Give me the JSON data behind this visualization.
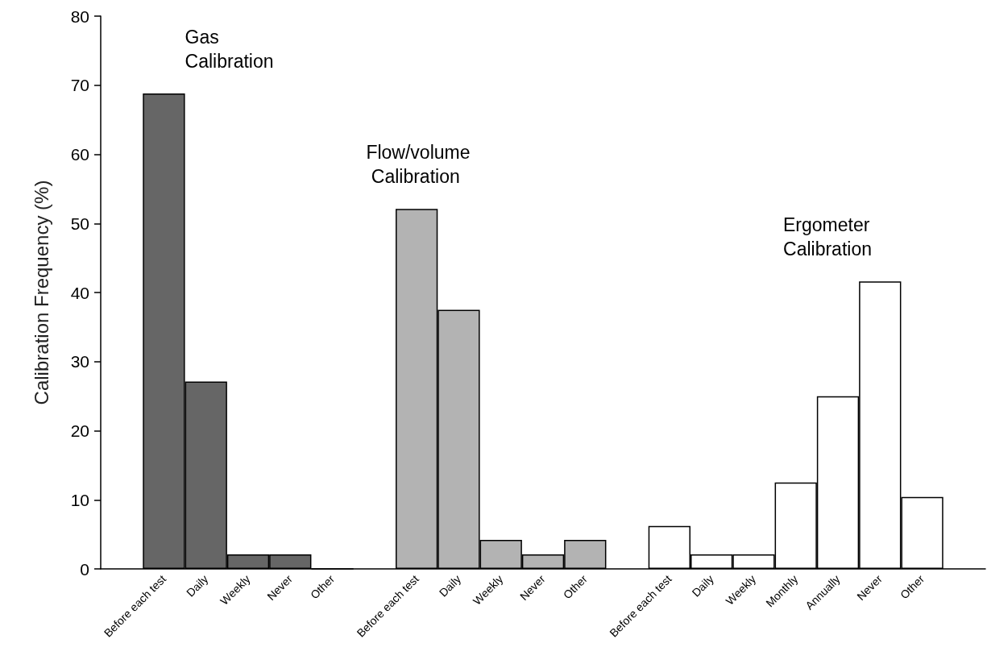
{
  "chart_data": {
    "type": "bar",
    "ylabel": "Calibration Frequency (%)",
    "categories": [
      null,
      "Before each test",
      "Daily",
      "Weekly",
      "Never",
      "Other",
      null,
      "Before each test",
      "Daily",
      "Weekly",
      "Never",
      "Other",
      null,
      "Before each test",
      "Daily",
      "Weekly",
      "Monthly",
      "Annually",
      "Never",
      "Other",
      null
    ],
    "series": [
      {
        "name": "Gas Calibration",
        "color": "#666666",
        "values": [
          null,
          68.8,
          27.1,
          2.1,
          2.1,
          0,
          null,
          null,
          null,
          null,
          null,
          null,
          null,
          null,
          null,
          null,
          null,
          null,
          null,
          null,
          null
        ]
      },
      {
        "name": "Flow/volume Calibration",
        "color": "#b3b3b3",
        "values": [
          null,
          null,
          null,
          null,
          null,
          null,
          null,
          52.1,
          37.5,
          4.2,
          2.1,
          4.2,
          null,
          null,
          null,
          null,
          null,
          null,
          null,
          null,
          null
        ]
      },
      {
        "name": "Ergometer Calibration",
        "color": "#ffffff",
        "values": [
          null,
          null,
          null,
          null,
          null,
          null,
          null,
          null,
          null,
          null,
          null,
          null,
          null,
          6.2,
          2.1,
          2.1,
          12.5,
          25,
          41.6,
          10.4,
          null
        ]
      }
    ],
    "ylim": [
      0,
      80
    ],
    "yticks": [
      0,
      10,
      20,
      30,
      40,
      50,
      60,
      70,
      80
    ],
    "grid": false,
    "legend": false
  }
}
